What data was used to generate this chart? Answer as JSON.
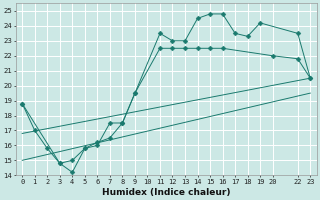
{
  "xlabel": "Humidex (Indice chaleur)",
  "bg_color": "#cce8e5",
  "grid_color": "#ffffff",
  "line_color": "#1a7a6e",
  "xlim": [
    -0.5,
    23.5
  ],
  "ylim": [
    14,
    25.5
  ],
  "xticks": [
    0,
    1,
    2,
    3,
    4,
    5,
    6,
    7,
    8,
    9,
    10,
    11,
    12,
    13,
    14,
    15,
    16,
    17,
    18,
    19,
    20,
    22,
    23
  ],
  "yticks": [
    14,
    15,
    16,
    17,
    18,
    19,
    20,
    21,
    22,
    23,
    24,
    25
  ],
  "line1_x": [
    0,
    1,
    2,
    3,
    4,
    5,
    6,
    7,
    8,
    9,
    11,
    12,
    13,
    14,
    15,
    16,
    20,
    22,
    23
  ],
  "line1_y": [
    18.8,
    17.0,
    15.8,
    14.8,
    15.0,
    15.8,
    16.2,
    16.5,
    17.5,
    19.5,
    22.5,
    22.5,
    22.5,
    22.5,
    22.5,
    22.5,
    22.0,
    21.8,
    20.5
  ],
  "line2_x": [
    0,
    3,
    4,
    5,
    6,
    7,
    8,
    9,
    11,
    12,
    13,
    14,
    15,
    16,
    17,
    18,
    19,
    22,
    23
  ],
  "line2_y": [
    18.8,
    14.8,
    14.2,
    15.8,
    16.0,
    17.5,
    17.5,
    19.5,
    23.5,
    23.0,
    23.0,
    24.5,
    24.8,
    24.8,
    23.5,
    23.3,
    24.2,
    23.5,
    20.5
  ],
  "line3_x": [
    0,
    23
  ],
  "line3_y": [
    15.0,
    19.5
  ],
  "line4_x": [
    0,
    23
  ],
  "line4_y": [
    16.8,
    20.5
  ],
  "marker_size": 2.5,
  "xlabel_fontsize": 6.5,
  "tick_fontsize": 5
}
